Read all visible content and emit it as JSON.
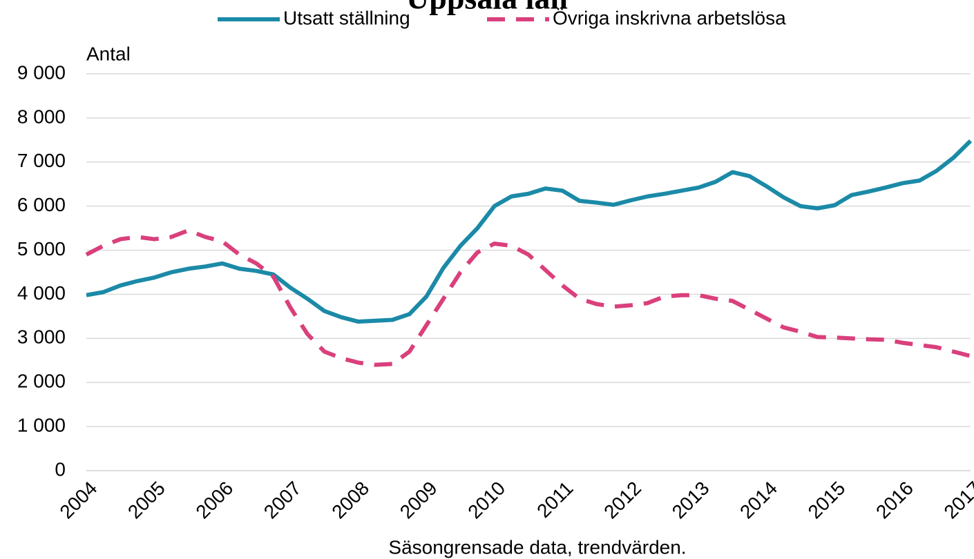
{
  "chart_data": {
    "type": "line",
    "title": "Uppsala län",
    "y_label": "Antal",
    "x_label": "Säsongrensade data, trendvärden.",
    "categories": [
      "2004",
      null,
      null,
      null,
      "2005",
      null,
      null,
      null,
      "2006",
      null,
      null,
      null,
      "2007",
      null,
      null,
      null,
      "2008",
      null,
      null,
      null,
      "2009",
      null,
      null,
      null,
      "2010",
      null,
      null,
      null,
      "2011",
      null,
      null,
      null,
      "2012",
      null,
      null,
      null,
      "2013",
      null,
      null,
      null,
      "2014",
      null,
      null,
      null,
      "2015",
      null,
      null,
      null,
      "2016",
      null,
      null,
      null,
      "2017"
    ],
    "series": [
      {
        "name": "Utsatt ställning",
        "color": "#1b8aa7",
        "dashed": false,
        "values": [
          3980,
          4050,
          4200,
          4300,
          4380,
          4500,
          4580,
          4630,
          4700,
          4580,
          4530,
          4450,
          4150,
          3900,
          3620,
          3480,
          3380,
          3400,
          3420,
          3550,
          3950,
          4600,
          5100,
          5500,
          6000,
          6220,
          6280,
          6400,
          6350,
          6120,
          6080,
          6030,
          6130,
          6220,
          6280,
          6350,
          6420,
          6550,
          6770,
          6680,
          6450,
          6200,
          6000,
          5950,
          6020,
          6250,
          6330,
          6420,
          6520,
          6580,
          6800,
          7100,
          7480
        ]
      },
      {
        "name": "Övriga inskrivna arbetslösa",
        "color": "#d9407c",
        "dashed": true,
        "values": [
          4900,
          5100,
          5250,
          5300,
          5250,
          5300,
          5450,
          5300,
          5200,
          4900,
          4700,
          4400,
          3700,
          3100,
          2700,
          2550,
          2450,
          2400,
          2420,
          2700,
          3300,
          3900,
          4500,
          4950,
          5150,
          5100,
          4900,
          4550,
          4200,
          3900,
          3780,
          3720,
          3750,
          3800,
          3950,
          3980,
          3980,
          3900,
          3850,
          3650,
          3450,
          3250,
          3150,
          3030,
          3020,
          3000,
          2980,
          2970,
          2900,
          2850,
          2800,
          2700,
          2600
        ]
      }
    ],
    "ylim": [
      0,
      9000
    ],
    "yticks": [
      0,
      {
        "value": 1000,
        "label": "1 000"
      },
      {
        "value": 2000,
        "label": "2 000"
      },
      {
        "value": 3000,
        "label": "3 000"
      },
      {
        "value": 4000,
        "label": "4 000"
      },
      {
        "value": 5000,
        "label": "5 000"
      },
      {
        "value": 6000,
        "label": "6 000"
      },
      {
        "value": 7000,
        "label": "7 000"
      },
      {
        "value": 8000,
        "label": "8 000"
      },
      {
        "value": 9000,
        "label": "9 000"
      }
    ],
    "grid": true,
    "legend": "top"
  }
}
